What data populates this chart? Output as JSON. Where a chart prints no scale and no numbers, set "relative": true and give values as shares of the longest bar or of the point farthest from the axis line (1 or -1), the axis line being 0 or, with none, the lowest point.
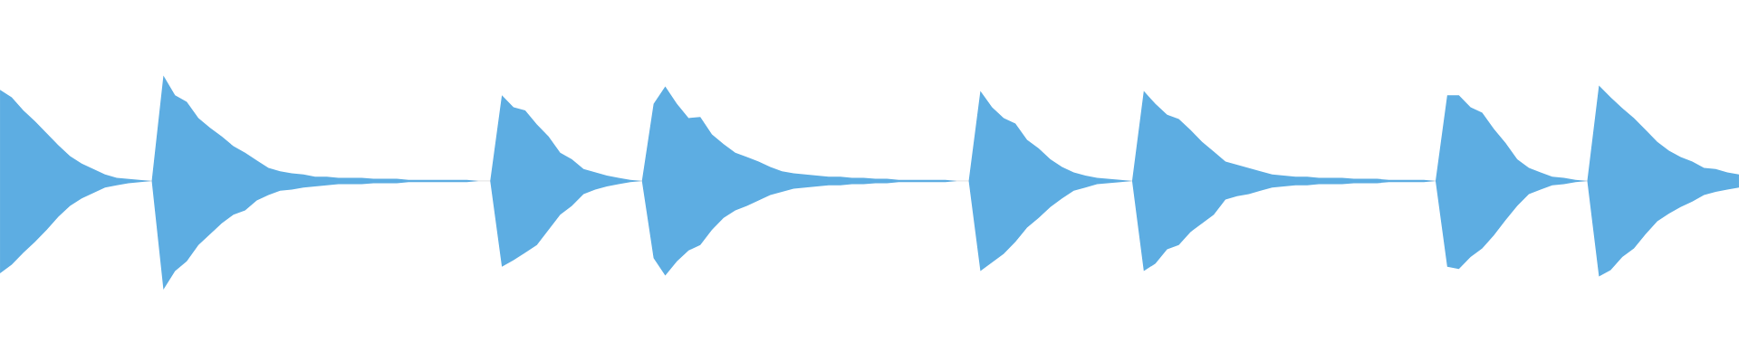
{
  "chart_data": {
    "type": "area",
    "relative": true,
    "categories": [
      null,
      null,
      null,
      null,
      null,
      null,
      null,
      null,
      null,
      null,
      null,
      null,
      null,
      null,
      null,
      null,
      null,
      null,
      null,
      null,
      null,
      null,
      null,
      null,
      null,
      null,
      null,
      null,
      null,
      null,
      null,
      null,
      null,
      null,
      null,
      null,
      null,
      null,
      null,
      null,
      null,
      null,
      null,
      null,
      null,
      null,
      null,
      null,
      null,
      null,
      null,
      null,
      null,
      null,
      null,
      null,
      null,
      null,
      null,
      null,
      null,
      null,
      null,
      null,
      null,
      null,
      null,
      null,
      null,
      null,
      null,
      null,
      null,
      null,
      null,
      null,
      null,
      null,
      null,
      null,
      null,
      null,
      null,
      null,
      null,
      null,
      null,
      null,
      null,
      null,
      null,
      null,
      null,
      null,
      null,
      null,
      null,
      null,
      null,
      null,
      null,
      null,
      null,
      null,
      null,
      null,
      null,
      null,
      null,
      null,
      null,
      null,
      null,
      null,
      null,
      null,
      null,
      null,
      null,
      null,
      null,
      null,
      null,
      null,
      null,
      null,
      null,
      null,
      null,
      null,
      null,
      null,
      null,
      null,
      null,
      null,
      null,
      null,
      null,
      null,
      null,
      null,
      null,
      null,
      null,
      null,
      null,
      null,
      null,
      null
    ],
    "series": [
      {
        "color": "#5dade2",
        "values": [
          0.84,
          0.77,
          0.65,
          0.55,
          0.44,
          0.33,
          0.23,
          0.16,
          0.11,
          0.06,
          0.03,
          0.02,
          0.01,
          0,
          0.97,
          0.79,
          0.73,
          0.58,
          0.49,
          0.41,
          0.32,
          0.26,
          0.19,
          0.12,
          0.09,
          0.07,
          0.06,
          0.04,
          0.04,
          0.03,
          0.03,
          0.03,
          0.02,
          0.02,
          0.02,
          0.01,
          0.01,
          0.01,
          0.01,
          0.01,
          0.01,
          0,
          0,
          0.79,
          0.68,
          0.65,
          0.52,
          0.41,
          0.26,
          0.2,
          0.11,
          0.08,
          0.05,
          0.03,
          0.01,
          0,
          0.71,
          0.87,
          0.71,
          0.58,
          0.59,
          0.43,
          0.34,
          0.26,
          0.22,
          0.18,
          0.13,
          0.09,
          0.07,
          0.06,
          0.05,
          0.04,
          0.04,
          0.03,
          0.03,
          0.02,
          0.02,
          0.01,
          0.01,
          0.01,
          0.01,
          0.01,
          0,
          0,
          0.83,
          0.68,
          0.58,
          0.53,
          0.38,
          0.3,
          0.2,
          0.13,
          0.08,
          0.05,
          0.03,
          0.02,
          0.01,
          0,
          0.83,
          0.71,
          0.61,
          0.57,
          0.47,
          0.36,
          0.27,
          0.18,
          0.15,
          0.12,
          0.09,
          0.06,
          0.05,
          0.04,
          0.04,
          0.03,
          0.03,
          0.03,
          0.02,
          0.02,
          0.02,
          0.01,
          0.01,
          0.01,
          0.01,
          0,
          0.79,
          0.79,
          0.68,
          0.63,
          0.48,
          0.35,
          0.2,
          0.12,
          0.08,
          0.04,
          0.03,
          0.01,
          0,
          0.88,
          0.77,
          0.67,
          0.58,
          0.47,
          0.36,
          0.28,
          0.22,
          0.18,
          0.12,
          0.11,
          0.08,
          0.06
        ]
      },
      {
        "color": "#5dade2",
        "values": [
          -0.85,
          -0.77,
          -0.66,
          -0.56,
          -0.45,
          -0.33,
          -0.23,
          -0.16,
          -0.11,
          -0.06,
          -0.04,
          -0.02,
          -0.01,
          0,
          -1.0,
          -0.83,
          -0.74,
          -0.59,
          -0.49,
          -0.39,
          -0.31,
          -0.27,
          -0.18,
          -0.13,
          -0.09,
          -0.08,
          -0.06,
          -0.05,
          -0.04,
          -0.03,
          -0.03,
          -0.03,
          -0.02,
          -0.02,
          -0.02,
          -0.01,
          -0.01,
          -0.01,
          -0.01,
          -0.01,
          -0.01,
          0,
          0,
          -0.79,
          -0.73,
          -0.66,
          -0.59,
          -0.45,
          -0.31,
          -0.23,
          -0.12,
          -0.08,
          -0.05,
          -0.03,
          -0.01,
          0,
          -0.71,
          -0.87,
          -0.74,
          -0.64,
          -0.59,
          -0.45,
          -0.34,
          -0.27,
          -0.23,
          -0.18,
          -0.13,
          -0.1,
          -0.07,
          -0.06,
          -0.05,
          -0.04,
          -0.04,
          -0.03,
          -0.03,
          -0.02,
          -0.02,
          -0.01,
          -0.01,
          -0.01,
          -0.01,
          -0.01,
          0,
          0,
          -0.83,
          -0.75,
          -0.67,
          -0.56,
          -0.43,
          -0.34,
          -0.24,
          -0.16,
          -0.09,
          -0.06,
          -0.03,
          -0.02,
          -0.01,
          0,
          -0.83,
          -0.76,
          -0.63,
          -0.59,
          -0.47,
          -0.39,
          -0.31,
          -0.17,
          -0.14,
          -0.12,
          -0.09,
          -0.06,
          -0.05,
          -0.04,
          -0.04,
          -0.03,
          -0.03,
          -0.03,
          -0.02,
          -0.02,
          -0.02,
          -0.01,
          -0.01,
          -0.01,
          -0.01,
          0,
          -0.79,
          -0.81,
          -0.7,
          -0.62,
          -0.5,
          -0.36,
          -0.23,
          -0.12,
          -0.08,
          -0.04,
          -0.03,
          -0.01,
          0,
          -0.88,
          -0.82,
          -0.7,
          -0.62,
          -0.49,
          -0.37,
          -0.3,
          -0.24,
          -0.19,
          -0.13,
          -0.1,
          -0.08,
          -0.06
        ]
      }
    ]
  }
}
